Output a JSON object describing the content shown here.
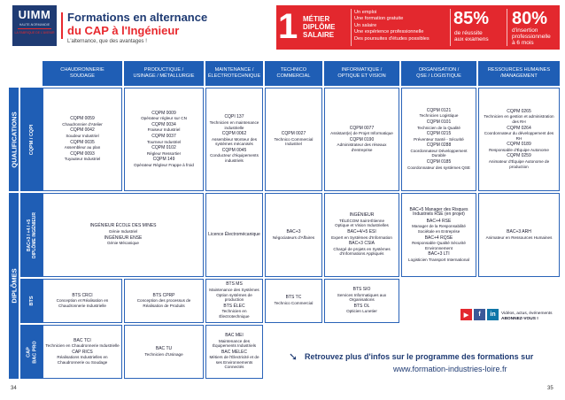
{
  "logo": {
    "name": "UIMM",
    "sub": "HAUTE-NORMANDIE",
    "tag": "LA FABRIQUE DE L'AVENIR"
  },
  "header": {
    "title1": "Formations en alternance",
    "title2": "du CAP à l'Ingénieur",
    "subtitle": "L'alternance, que des avantages !"
  },
  "banner": {
    "number": "1",
    "mds": [
      "MÉTIER",
      "DIPLÔME",
      "SALAIRE"
    ],
    "bullets": [
      "Un emploi",
      "Une formation gratuite",
      "Un salaire",
      "Une expérience professionnelle",
      "Des poursuites d'études possibles"
    ],
    "stat1_value": "85%",
    "stat1_label": [
      "de réussite",
      "aux examens"
    ],
    "stat2_value": "80%",
    "stat2_label": [
      "d'insertion",
      "professionnelle",
      "à 6 mois"
    ]
  },
  "columns": [
    [
      "CHAUDRONNERIE",
      "SOUDAGE"
    ],
    [
      "PRODUCTIQUE /",
      "USINAGE / MÉTALLURGIE"
    ],
    [
      "MAINTENANCE /",
      "ÉLECTROTECHNIQUE"
    ],
    [
      "TECHNICO",
      "COMMERCIAL"
    ],
    [
      "INFORMATIQUE /",
      "OPTIQUE ET VISION"
    ],
    [
      "ORGANISATION /",
      "QSE / LOGISTIQUE"
    ],
    [
      "RESSOURCES HUMAINES",
      "/MANAGEMENT"
    ]
  ],
  "groups": {
    "qualifications": "QUALIFICATIONS",
    "diplomes": "DIPLÔMES"
  },
  "rows": {
    "cqpm": "CQPM / CQPI",
    "bac3": [
      "BAC+3 / +4 / +5",
      "DIPLÔME INGÉNIEUR"
    ],
    "bts": "BTS",
    "cap": [
      "CAP",
      "BAC PRO"
    ]
  },
  "cells": {
    "cqpm": [
      [
        "CQPM 0059",
        "Chaudronnier d'Atelier",
        "CQPM 0042",
        "Soudeur Industriel",
        "CQPM 0035",
        "Assembleur au plan",
        "CQPM 0093",
        "Tuyauteur Industriel"
      ],
      [
        "CQPM 0009",
        "Opérateur régleur sur CN",
        "CQPM 0034",
        "Fraiseur Industriel",
        "CQPM 0037",
        "Tourneur Industriel",
        "CQPM 0102",
        "Régleur Ressortier",
        "CQPM 149",
        "Opérateur Régleur Frappe à froid"
      ],
      [
        "CQPI 137",
        "Technicien en maintenance industrielle",
        "CQPM 0062",
        "Assembleur Monteur des systèmes mécanisés",
        "CQPM 0045",
        "Conducteur d'équipements industriels"
      ],
      [
        "CQPM 0027",
        "Technico Commercial Industriel"
      ],
      [
        "CQPM 0077",
        "Assistant(e) de Projet Informatique",
        "CQPM 0190",
        "Administrateur des réseaux d'entreprise"
      ],
      [
        "CQPM 0121",
        "Technicien Logistique",
        "CQPM 0101",
        "Technicien de la Qualité",
        "CQPM 0215",
        "Préventeur Santé - Sécurité",
        "CQPM 0288",
        "Coordonnateur Développement Durable",
        "CQPM 0185",
        "Coordonnateur des systèmes QSE"
      ],
      [
        "CQPM 0265",
        "Technicien en gestion et administration des RH",
        "CQPM 0264",
        "Coordonnateur du développement des RH",
        "CQPM 0189",
        "Responsable d'Équipe Autonome",
        "CQPM 0259",
        "Animateur d'Équipe Autonome de production"
      ]
    ],
    "bac3": [
      [
        "INGÉNIEUR ÉCOLE DES MINES",
        "Génie Industriel",
        "INGÉNIEUR ENSE",
        "Génie Mécanique"
      ],
      [
        "Licence Électromécanique"
      ],
      [
        "BAC+3",
        "Négociateurs d'Affaires"
      ],
      [
        "INGÉNIEUR",
        "TÉLÉCOM Saint-Étienne",
        "Optique et Vision Industrielles",
        "BAC+4/+5 ESI",
        "Expert en Systèmes d'Information",
        "BAC+3 CSIA",
        "Chargé de projets en Systèmes d'Informations Appliqués"
      ],
      [
        "BAC+5 Manager des Risques Industriels RSE (en projet)",
        "BAC+4 RSE",
        "Manager de la Responsabilité Sociétale en Entreprise",
        "BAC+4 RQSE",
        "Responsable Qualité Sécurité Environnement",
        "BAC+3 LTI",
        "Logisticien Transport International"
      ],
      [
        "BAC+3 ARH",
        "Animateur en Ressources Humaines"
      ]
    ],
    "bts": [
      [
        "BTS CRCI",
        "Conception et Réalisation en Chaudronnerie Industrielle"
      ],
      [
        "BTS CPRP",
        "Conception des processus de Réalisation de Produits"
      ],
      [
        "BTS MS",
        "Maintenance des Systèmes Option systèmes de production",
        "BTS ÉLEC",
        "Technicien en Électrotechnique"
      ],
      [
        "BTS TC",
        "Technico Commercial"
      ],
      [
        "BTS SIO",
        "Services Informatiques aux Organisations",
        "BTS OL",
        "Opticien Lunetier"
      ]
    ],
    "cap": [
      [
        "BAC TCI",
        "Technicien en Chaudronnerie Industrielle",
        "CAP RICS",
        "Réalisations Industrielles en Chaudronnerie ou Soudage"
      ],
      [
        "BAC TU",
        "Technicien d'Usinage"
      ],
      [
        "BAC MEI",
        "Maintenance des Équipements Industriels",
        "BAC MELEC",
        "Métiers de l'Électricité et de ses Environnements Connectés"
      ]
    ]
  },
  "social_note": [
    "Vidéos, actus, événements",
    "ABONNEZ-VOUS !"
  ],
  "cta": {
    "line1": "Retrouvez plus d'infos sur le programme des formations sur",
    "line2": "www.formation-industries-loire.fr"
  },
  "pages": {
    "left": "34",
    "right": "35"
  },
  "colors": {
    "blue": "#1f5eb5",
    "navy": "#1f3b73",
    "red": "#e3282e"
  }
}
